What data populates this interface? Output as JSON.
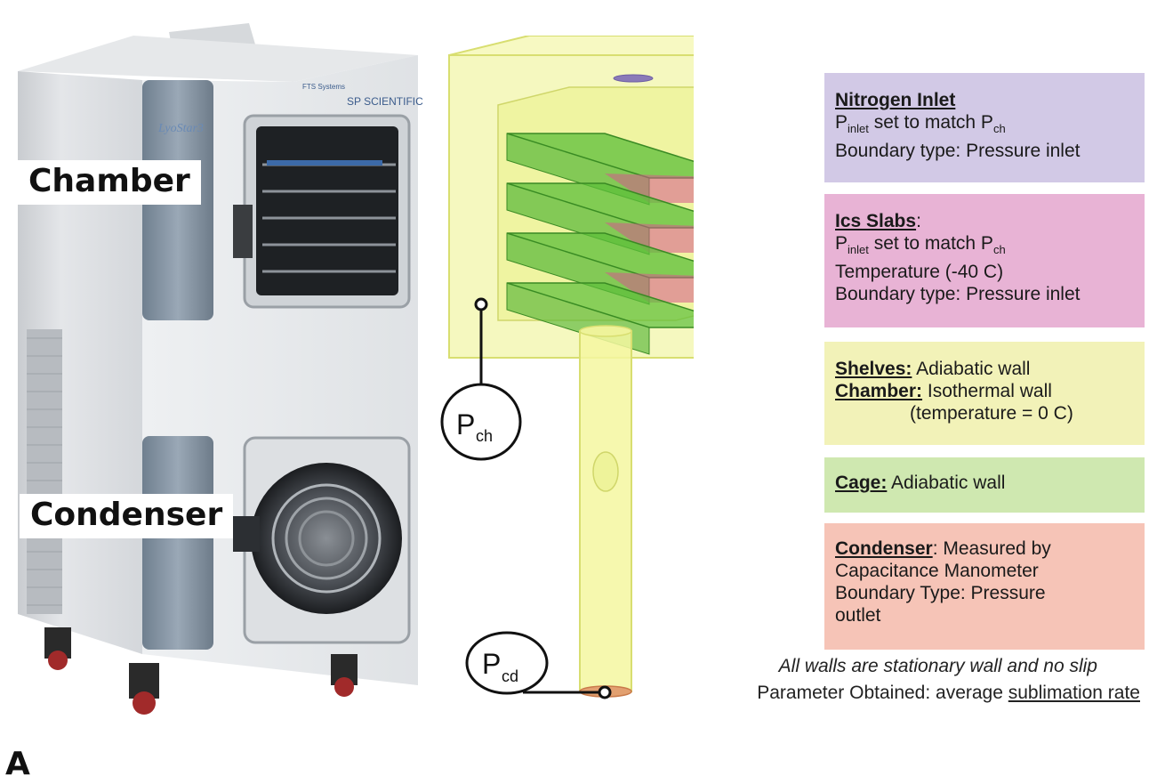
{
  "photo": {
    "brand_top": "FTS Systems",
    "brand_main": "SP SCIENTIFIC",
    "model": "LyoStar3",
    "label_chamber": "Chamber",
    "label_condenser": "Condenser"
  },
  "diagram": {
    "p_ch_main": "P",
    "p_ch_sub": "ch",
    "p_cd_main": "P",
    "p_cd_sub": "cd"
  },
  "boxes": {
    "nitrogen": {
      "title": "Nitrogen Inlet",
      "line1_p": "P",
      "line1_sub": "inlet",
      "line1_mid": " set to match P",
      "line1_sub2": "ch",
      "line2": "Boundary type: Pressure inlet",
      "color": "#d2c9e6"
    },
    "ics": {
      "title": "Ics Slabs",
      "title_suffix": ":",
      "line1_p": "P",
      "line1_sub": "inlet",
      "line1_mid": " set to match P",
      "line1_sub2": "ch",
      "line2": "Temperature (-40 C)",
      "line3": "Boundary type: Pressure inlet",
      "color": "#e8b3d5"
    },
    "shelves": {
      "shelves_label": "Shelves:",
      "shelves_text": " Adiabatic wall",
      "chamber_label": "Chamber:",
      "chamber_text": " Isothermal wall",
      "line3": "(temperature = 0 C)",
      "color": "#f2f2b8"
    },
    "cage": {
      "label": "Cage:",
      "text": " Adiabatic wall",
      "color": "#cfe8b0"
    },
    "condenser": {
      "label": "Condenser",
      "text1": ": Measured by",
      "line2": "Capacitance Manometer",
      "line3": "Boundary Type: Pressure",
      "line4": "outlet",
      "color": "#f6c4b7"
    }
  },
  "notes": {
    "line1": "All walls are stationary wall and no slip",
    "line2_prefix": "Parameter Obtained: average ",
    "line2_underlined": "sublimation rate"
  },
  "figure_letter": "A"
}
